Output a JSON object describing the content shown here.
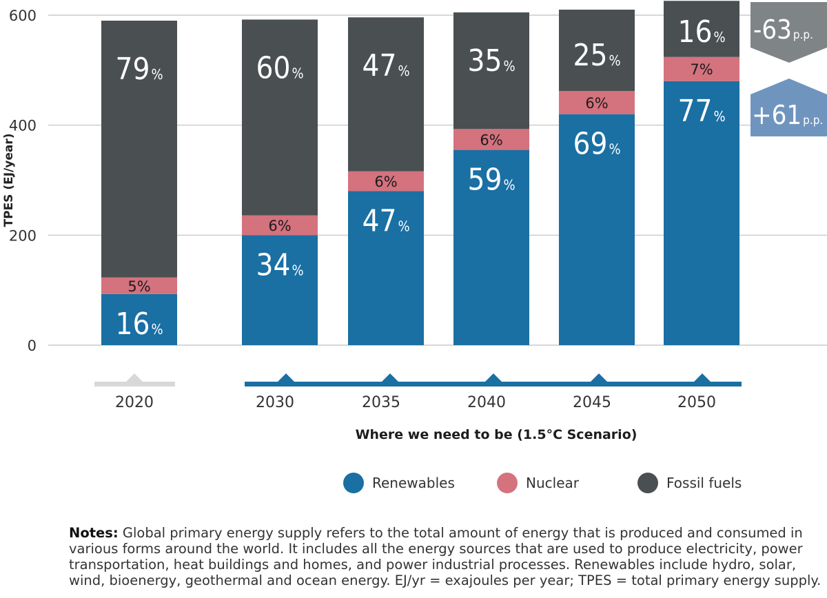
{
  "chart_data": {
    "type": "bar",
    "stacked": true,
    "ylabel": "TPES (EJ/year)",
    "ylim": [
      0,
      600
    ],
    "yticks": [
      0,
      200,
      400,
      600
    ],
    "grid": true,
    "categories": [
      "2020",
      "2030",
      "2035",
      "2040",
      "2045",
      "2050"
    ],
    "series": [
      {
        "name": "Renewables",
        "color": "#1a6fa3",
        "values": [
          93,
          200,
          280,
          355,
          420,
          480
        ],
        "labels": [
          "16",
          "34",
          "47",
          "59",
          "69",
          "77"
        ]
      },
      {
        "name": "Nuclear",
        "color": "#d4727e",
        "values": [
          30,
          36,
          36,
          38,
          42,
          44
        ],
        "labels": [
          "5%",
          "6%",
          "6%",
          "6%",
          "6%",
          "7%"
        ]
      },
      {
        "name": "Fossil fuels",
        "color": "#4a4f52",
        "values": [
          467,
          356,
          280,
          212,
          148,
          102
        ],
        "labels": [
          "79",
          "60",
          "47",
          "35",
          "25",
          "16"
        ]
      }
    ],
    "percent_sign": "%",
    "change_badges": [
      {
        "value": "-63",
        "unit": "p.p.",
        "series": "Fossil fuels",
        "color": "#7f8487",
        "shape": "arrow-down"
      },
      {
        "value": "+61",
        "unit": "p.p.",
        "series": "Renewables",
        "color": "#6f95bf",
        "shape": "arrow-up"
      }
    ],
    "timeline": {
      "historical_color": "#d8d8d8",
      "scenario_color": "#1a6fa3",
      "scenario_label": "Where we need to be (1.5°C Scenario)"
    }
  },
  "legend": [
    {
      "name": "Renewables",
      "color": "#1a6fa3"
    },
    {
      "name": "Nuclear",
      "color": "#d4727e"
    },
    {
      "name": "Fossil fuels",
      "color": "#4a4f52"
    }
  ],
  "notes": {
    "label": "Notes:",
    "text": "Global primary energy supply refers to the total amount of energy that is produced and consumed in various forms around the world. It includes all the energy sources that are used to produce electricity, power transportation, heat buildings and homes, and power industrial processes. Renewables include hydro, solar, wind, bioenergy, geothermal and ocean energy. EJ/yr = exajoules per year; TPES = total primary energy supply."
  }
}
